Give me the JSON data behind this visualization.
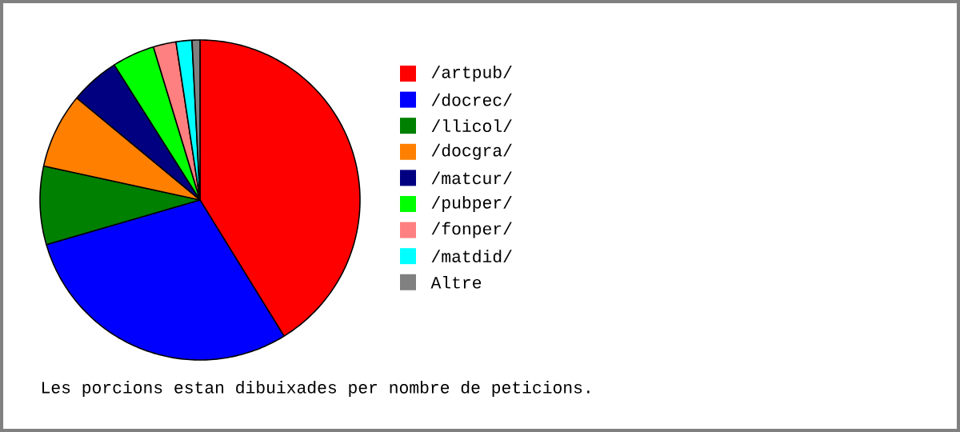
{
  "chart_data": {
    "type": "pie",
    "categories": [
      "/artpub/",
      "/docrec/",
      "/llicol/",
      "/docgra/",
      "/matcur/",
      "/pubper/",
      "/fonper/",
      "/matdid/",
      "Altre"
    ],
    "values": [
      41.2,
      29.3,
      7.9,
      7.6,
      5.0,
      4.3,
      2.3,
      1.6,
      0.8
    ],
    "colors": [
      "#ff0000",
      "#0000ff",
      "#008000",
      "#ff8000",
      "#000080",
      "#00ff00",
      "#ff8080",
      "#00ffff",
      "#808080"
    ],
    "legend": "right",
    "annotations": [
      "Les porcions estan dibuixades per nombre de peticions."
    ]
  }
}
